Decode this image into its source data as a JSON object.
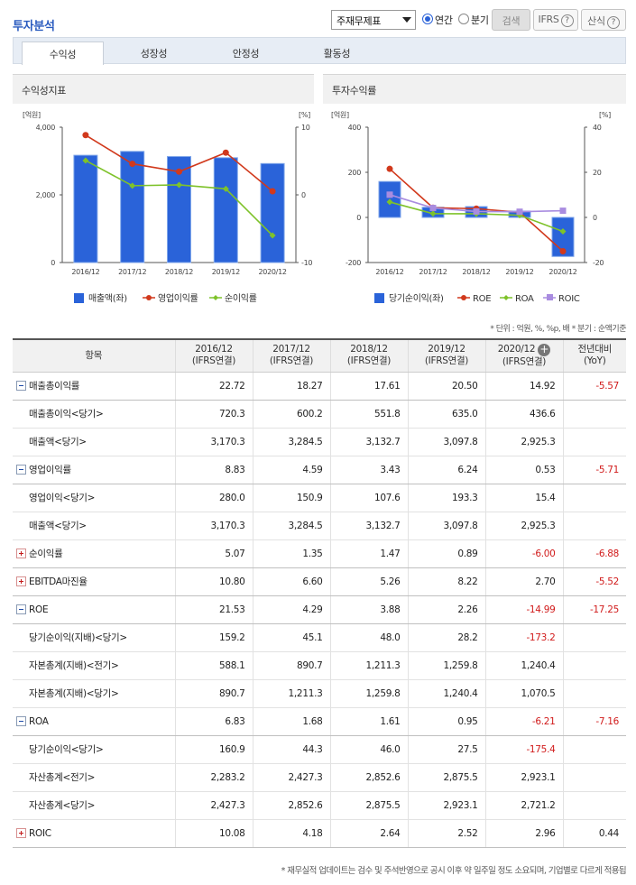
{
  "header": {
    "title": "투자분석",
    "select_value": "주재무제표",
    "radio_annual": "연간",
    "radio_quarter": "분기",
    "search_btn": "검색",
    "ifrs_btn": "IFRS",
    "calc_btn": "산식",
    "help": "?"
  },
  "tabs": [
    "수익성",
    "성장성",
    "안정성",
    "활동성"
  ],
  "chart1": {
    "title": "수익성지표",
    "unit_left": "[억원]",
    "unit_right": "[%]",
    "yticks_left": [
      "4,000",
      "2,000",
      "0"
    ],
    "yticks_right": [
      "10",
      "0",
      "-10"
    ],
    "legend": [
      "매출액(좌)",
      "영업이익률",
      "순이익률"
    ]
  },
  "chart2": {
    "title": "투자수익률",
    "unit_left": "[억원]",
    "unit_right": "[%]",
    "yticks_left": [
      "400",
      "200",
      "0",
      "-200"
    ],
    "yticks_right": [
      "40",
      "20",
      "0",
      "-20"
    ],
    "legend": [
      "당기순이익(좌)",
      "ROE",
      "ROA",
      "ROIC"
    ]
  },
  "chart_data": [
    {
      "type": "bar",
      "title": "수익성지표",
      "categories": [
        "2016/12",
        "2017/12",
        "2018/12",
        "2019/12",
        "2020/12"
      ],
      "ylim": [
        0,
        4000
      ],
      "y2lim": [
        -10,
        10
      ],
      "series": [
        {
          "name": "매출액(좌)",
          "kind": "bar",
          "color": "#2a63d9",
          "values": [
            3170.3,
            3284.5,
            3132.7,
            3097.8,
            2925.3
          ]
        },
        {
          "name": "영업이익률",
          "kind": "line",
          "color": "#d1391c",
          "values": [
            8.83,
            4.59,
            3.43,
            6.24,
            0.53
          ]
        },
        {
          "name": "순이익률",
          "kind": "line",
          "color": "#7ec22a",
          "values": [
            5.07,
            1.35,
            1.47,
            0.89,
            -6.0
          ]
        }
      ]
    },
    {
      "type": "bar",
      "title": "투자수익률",
      "categories": [
        "2016/12",
        "2017/12",
        "2018/12",
        "2019/12",
        "2020/12"
      ],
      "ylim": [
        -200,
        400
      ],
      "y2lim": [
        -20,
        40
      ],
      "series": [
        {
          "name": "당기순이익(좌)",
          "kind": "bar",
          "color": "#2a63d9",
          "values": [
            159.2,
            45.1,
            48.0,
            28.2,
            -173.2
          ]
        },
        {
          "name": "ROE",
          "kind": "line",
          "color": "#d1391c",
          "values": [
            21.53,
            4.29,
            3.88,
            2.26,
            -14.99
          ]
        },
        {
          "name": "ROA",
          "kind": "line",
          "color": "#7ec22a",
          "values": [
            6.83,
            1.68,
            1.61,
            0.95,
            -6.21
          ]
        },
        {
          "name": "ROIC",
          "kind": "line",
          "color": "#a98ce0",
          "values": [
            10.08,
            4.18,
            2.64,
            2.52,
            2.96
          ]
        }
      ]
    }
  ],
  "units_note": "* 단위 : 억원, %, %p, 배    * 분기 : 순액기준",
  "table": {
    "headers": [
      "항목",
      "2016/12",
      "2017/12",
      "2018/12",
      "2019/12",
      "2020/12",
      "전년대비"
    ],
    "subheaders": [
      "",
      "(IFRS연결)",
      "(IFRS연결)",
      "(IFRS연결)",
      "(IFRS연결)",
      "(IFRS연결)",
      "(YoY)"
    ],
    "rows": [
      {
        "kind": "main",
        "icon": "minus",
        "cells": [
          "매출총이익률",
          "22.72",
          "18.27",
          "17.61",
          "20.50",
          "14.92",
          "-5.57"
        ]
      },
      {
        "kind": "sub",
        "cells": [
          "매출총이익<당기>",
          "720.3",
          "600.2",
          "551.8",
          "635.0",
          "436.6",
          ""
        ]
      },
      {
        "kind": "sub",
        "cells": [
          "매출액<당기>",
          "3,170.3",
          "3,284.5",
          "3,132.7",
          "3,097.8",
          "2,925.3",
          ""
        ]
      },
      {
        "kind": "main",
        "icon": "minus",
        "cells": [
          "영업이익률",
          "8.83",
          "4.59",
          "3.43",
          "6.24",
          "0.53",
          "-5.71"
        ]
      },
      {
        "kind": "sub",
        "cells": [
          "영업이익<당기>",
          "280.0",
          "150.9",
          "107.6",
          "193.3",
          "15.4",
          ""
        ]
      },
      {
        "kind": "sub",
        "cells": [
          "매출액<당기>",
          "3,170.3",
          "3,284.5",
          "3,132.7",
          "3,097.8",
          "2,925.3",
          ""
        ]
      },
      {
        "kind": "main",
        "icon": "plus",
        "cells": [
          "순이익률",
          "5.07",
          "1.35",
          "1.47",
          "0.89",
          "-6.00",
          "-6.88"
        ]
      },
      {
        "kind": "main",
        "icon": "plus",
        "cells": [
          "EBITDA마진율",
          "10.80",
          "6.60",
          "5.26",
          "8.22",
          "2.70",
          "-5.52"
        ]
      },
      {
        "kind": "main",
        "icon": "minus",
        "cells": [
          "ROE",
          "21.53",
          "4.29",
          "3.88",
          "2.26",
          "-14.99",
          "-17.25"
        ]
      },
      {
        "kind": "sub",
        "cells": [
          "당기순이익(지배)<당기>",
          "159.2",
          "45.1",
          "48.0",
          "28.2",
          "-173.2",
          ""
        ]
      },
      {
        "kind": "sub",
        "cells": [
          "자본총계(지배)<전기>",
          "588.1",
          "890.7",
          "1,211.3",
          "1,259.8",
          "1,240.4",
          ""
        ]
      },
      {
        "kind": "sub",
        "cells": [
          "자본총계(지배)<당기>",
          "890.7",
          "1,211.3",
          "1,259.8",
          "1,240.4",
          "1,070.5",
          ""
        ]
      },
      {
        "kind": "main",
        "icon": "minus",
        "cells": [
          "ROA",
          "6.83",
          "1.68",
          "1.61",
          "0.95",
          "-6.21",
          "-7.16"
        ]
      },
      {
        "kind": "sub",
        "cells": [
          "당기순이익<당기>",
          "160.9",
          "44.3",
          "46.0",
          "27.5",
          "-175.4",
          ""
        ]
      },
      {
        "kind": "sub",
        "cells": [
          "자산총계<전기>",
          "2,283.2",
          "2,427.3",
          "2,852.6",
          "2,875.5",
          "2,923.1",
          ""
        ]
      },
      {
        "kind": "sub",
        "cells": [
          "자산총계<당기>",
          "2,427.3",
          "2,852.6",
          "2,875.5",
          "2,923.1",
          "2,721.2",
          ""
        ]
      },
      {
        "kind": "main",
        "icon": "plus",
        "cells": [
          "ROIC",
          "10.08",
          "4.18",
          "2.64",
          "2.52",
          "2.96",
          "0.44"
        ]
      }
    ]
  },
  "footnote": "* 재무실적 업데이트는 검수 및 주석반영으로 공시 이후 약 일주일 정도 소요되며, 기업별로 다르게 적용됩",
  "colors": {
    "accent": "#2a5bbf",
    "bar": "#2a63d9",
    "red": "#d1391c",
    "green": "#7ec22a",
    "purple": "#a98ce0",
    "neg": "#d11b1b"
  }
}
